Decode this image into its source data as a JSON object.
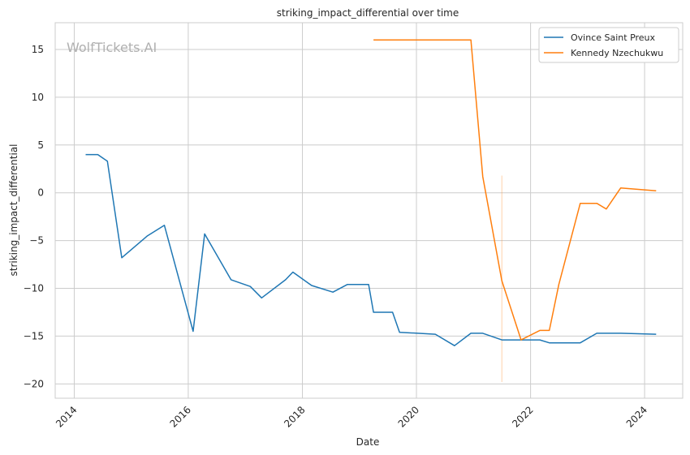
{
  "watermark": "WolfTickets.AI",
  "chart_data": {
    "type": "line",
    "title": "striking_impact_differential over time",
    "xlabel": "Date",
    "ylabel": "striking_impact_differential",
    "xlim": [
      "2013-09-01",
      "2024-09-01"
    ],
    "ylim": [
      -21.5,
      17.8
    ],
    "grid": true,
    "legend_position": "top-right",
    "x_ticks": [
      "2014",
      "2016",
      "2018",
      "2020",
      "2022",
      "2024"
    ],
    "y_ticks": [
      15,
      10,
      5,
      0,
      -5,
      -10,
      -15,
      -20
    ],
    "series": [
      {
        "name": "Ovince Saint Preux",
        "color": "#1f77b4",
        "points": [
          [
            "2014-03-15",
            4.0
          ],
          [
            "2014-06-01",
            4.0
          ],
          [
            "2014-08-01",
            3.3
          ],
          [
            "2014-11-01",
            -6.8
          ],
          [
            "2015-04-15",
            -4.5
          ],
          [
            "2015-08-01",
            -3.4
          ],
          [
            "2016-02-01",
            -14.5
          ],
          [
            "2016-04-15",
            -4.3
          ],
          [
            "2016-10-01",
            -9.1
          ],
          [
            "2017-02-01",
            -9.8
          ],
          [
            "2017-04-15",
            -11.0
          ],
          [
            "2017-09-15",
            -9.1
          ],
          [
            "2017-11-01",
            -8.3
          ],
          [
            "2018-03-01",
            -9.7
          ],
          [
            "2018-07-15",
            -10.4
          ],
          [
            "2018-10-15",
            -9.6
          ],
          [
            "2019-03-01",
            -9.6
          ],
          [
            "2019-04-01",
            -12.5
          ],
          [
            "2019-08-01",
            -12.5
          ],
          [
            "2019-09-15",
            -14.6
          ],
          [
            "2020-05-01",
            -14.8
          ],
          [
            "2020-09-01",
            -16.0
          ],
          [
            "2020-12-15",
            -14.7
          ],
          [
            "2021-03-01",
            -14.7
          ],
          [
            "2021-07-01",
            -15.4
          ],
          [
            "2021-11-01",
            -15.4
          ],
          [
            "2022-03-01",
            -15.4
          ],
          [
            "2022-05-01",
            -15.7
          ],
          [
            "2022-11-15",
            -15.7
          ],
          [
            "2023-03-01",
            -14.7
          ],
          [
            "2023-08-01",
            -14.7
          ],
          [
            "2024-03-15",
            -14.8
          ]
        ]
      },
      {
        "name": "Kennedy Nzechukwu",
        "color": "#ff7f0e",
        "points": [
          [
            "2019-04-01",
            16.0
          ],
          [
            "2020-12-15",
            16.0
          ],
          [
            "2021-03-01",
            1.7
          ],
          [
            "2021-07-01",
            -9.2
          ],
          [
            "2021-11-01",
            -15.4
          ],
          [
            "2022-03-01",
            -14.4
          ],
          [
            "2022-05-01",
            -14.4
          ],
          [
            "2022-07-01",
            -9.6
          ],
          [
            "2022-11-15",
            -1.1
          ],
          [
            "2023-03-01",
            -1.1
          ],
          [
            "2023-05-01",
            -1.7
          ],
          [
            "2023-08-01",
            0.5
          ],
          [
            "2024-03-15",
            0.2
          ]
        ],
        "band": {
          "x": "2021-07-01",
          "low": -19.8,
          "high": 1.8
        }
      }
    ]
  }
}
